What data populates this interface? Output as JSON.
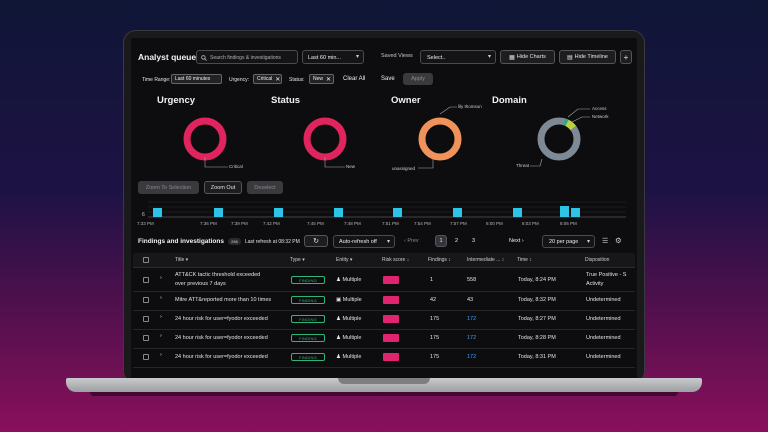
{
  "header": {
    "title": "Analyst queue",
    "search_placeholder": "Search findings & investigations",
    "time_range_select": "Last 60 min...",
    "saved_views_label": "Saved Views",
    "saved_views_select": "Select..",
    "hide_charts_label": "Hide Charts",
    "hide_timeline_label": "Hide Timeline",
    "add_label": "+"
  },
  "filters": {
    "time_range_label": "Time Range:",
    "time_range_value": "Last 60 minutes",
    "urgency_label": "Urgency:",
    "urgency_value": "Critical",
    "status_label": "Status:",
    "status_value": "New",
    "clear_all": "Clear All",
    "save": "Save",
    "apply": "Apply"
  },
  "charts": {
    "urgency": {
      "title": "Urgency",
      "label": "Critical",
      "color": "#e0245e"
    },
    "status": {
      "title": "Status",
      "label": "New",
      "color": "#e0245e"
    },
    "owner": {
      "title": "Owner",
      "labels": [
        "lily thomson",
        "unassigned"
      ],
      "color": "#f0935a"
    },
    "domain": {
      "title": "Domain",
      "labels": [
        "Access",
        "Network",
        "Threat"
      ],
      "colors": [
        "#7d8a96",
        "#b8d43a",
        "#2fa58e"
      ]
    }
  },
  "timeline": {
    "zoom_to_selection": "Zoom To Selection",
    "zoom_out": "Zoom Out",
    "deselect": "Deselect",
    "y_label": "6",
    "ticks": [
      "7:33 PM",
      "7:36 PM",
      "7:39 PM",
      "7:42 PM",
      "7:45 PM",
      "7:48 PM",
      "7:51 PM",
      "7:54 PM",
      "7:57 PM",
      "8:00 PM",
      "8:03 PM",
      "8:06 PM"
    ],
    "bar_color": "#2ec4e6"
  },
  "table_header": {
    "title": "Findings and investigations",
    "count": "286",
    "last_refresh": "Last refresh at 08:32 PM",
    "auto_refresh": "Auto-refresh off",
    "prev": "Prev",
    "pages": [
      "1",
      "2",
      "3"
    ],
    "next": "Next",
    "per_page": "20 per page"
  },
  "columns": [
    "Title",
    "Type",
    "Entity",
    "Risk score",
    "Findings",
    "Intermediate ...",
    "Time",
    "Disposition"
  ],
  "rows": [
    {
      "title1": "ATT&CK tactic threshold exceeded",
      "title2": "over previous 7 days",
      "type": "FINDING",
      "entity": "Multiple",
      "findings": "1",
      "intermediate": "558",
      "time": "Today, 8:24 PM",
      "disp1": "True Positive - S",
      "disp2": "Activity"
    },
    {
      "title1": "Mitre ATT&reported more than 10 times",
      "title2": "",
      "type": "FINDING",
      "entity": "Multiple",
      "findings": "42",
      "intermediate": "43",
      "time": "Today, 8:32 PM",
      "disp1": "Undetermined",
      "disp2": ""
    },
    {
      "title1": "24 hour risk for user=fyodor exceeded",
      "title2": "",
      "type": "FINDING",
      "entity": "Multiple",
      "findings": "175",
      "intermediate": "172",
      "time": "Today, 8:27 PM",
      "disp1": "Undetermined",
      "disp2": ""
    },
    {
      "title1": "24 hour risk for user=fyodor exceeded",
      "title2": "",
      "type": "FINDING",
      "entity": "Multiple",
      "findings": "175",
      "intermediate": "172",
      "time": "Today, 8:28 PM",
      "disp1": "Undetermined",
      "disp2": ""
    },
    {
      "title1": "24 hour risk for user=fyodor exceeded",
      "title2": "",
      "type": "FINDING",
      "entity": "Multiple",
      "findings": "175",
      "intermediate": "172",
      "time": "Today, 8:31 PM",
      "disp1": "Undetermined",
      "disp2": ""
    }
  ]
}
